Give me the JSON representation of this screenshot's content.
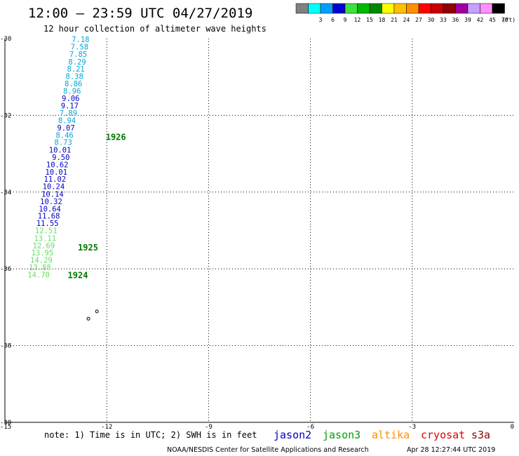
{
  "header": {
    "title": "12:00 — 23:59 UTC 04/27/2019",
    "subtitle": "12 hour collection of altimeter wave heights"
  },
  "colorbar": {
    "unit": "(ft)",
    "steps": [
      {
        "color": "#808080",
        "label": ""
      },
      {
        "color": "#00ffff",
        "label": "3"
      },
      {
        "color": "#00a0ff",
        "label": "6"
      },
      {
        "color": "#0000d0",
        "label": "9"
      },
      {
        "color": "#40e040",
        "label": "12"
      },
      {
        "color": "#00b800",
        "label": "15"
      },
      {
        "color": "#008800",
        "label": "18"
      },
      {
        "color": "#ffff00",
        "label": "21"
      },
      {
        "color": "#ffc000",
        "label": "24"
      },
      {
        "color": "#ff9000",
        "label": "27"
      },
      {
        "color": "#ff0000",
        "label": "30"
      },
      {
        "color": "#c80000",
        "label": "33"
      },
      {
        "color": "#900000",
        "label": "36"
      },
      {
        "color": "#a000a0",
        "label": "39"
      },
      {
        "color": "#c8a0ff",
        "label": "42"
      },
      {
        "color": "#ff90ff",
        "label": "45"
      },
      {
        "color": "#000000",
        "label": "70"
      }
    ]
  },
  "axes": {
    "lon_ticks": [
      {
        "value": -15,
        "label": "-15"
      },
      {
        "value": -12,
        "label": "-12"
      },
      {
        "value": -9,
        "label": "-9"
      },
      {
        "value": -6,
        "label": "-6"
      },
      {
        "value": -3,
        "label": "-3"
      },
      {
        "value": 0,
        "label": "0"
      }
    ],
    "lat_ticks": [
      {
        "value": -30,
        "label": "-30"
      },
      {
        "value": -32,
        "label": "-32"
      },
      {
        "value": -34,
        "label": "-34"
      },
      {
        "value": -36,
        "label": "-36"
      },
      {
        "value": -38,
        "label": "-38"
      },
      {
        "value": -40,
        "label": "-40"
      }
    ]
  },
  "track": {
    "colors": {
      "jason2": "#0000c8",
      "light_blue": "#00a8d8",
      "jason3_light": "#66dd66",
      "time": "#007800"
    },
    "labels": [
      {
        "text": "7.18",
        "lon": -12.51,
        "lat": -30.02,
        "color": "#00a8d8"
      },
      {
        "text": "7.58",
        "lon": -12.54,
        "lat": -30.21,
        "color": "#00a8d8"
      },
      {
        "text": "7.85",
        "lon": -12.58,
        "lat": -30.4,
        "color": "#00a8d8"
      },
      {
        "text": "8.29",
        "lon": -12.61,
        "lat": -30.6,
        "color": "#00a8d8"
      },
      {
        "text": "8.21",
        "lon": -12.65,
        "lat": -30.79,
        "color": "#00a8d8"
      },
      {
        "text": "8.38",
        "lon": -12.69,
        "lat": -30.98,
        "color": "#00a8d8"
      },
      {
        "text": "8.86",
        "lon": -12.72,
        "lat": -31.17,
        "color": "#00a8d8"
      },
      {
        "text": "8.96",
        "lon": -12.76,
        "lat": -31.36,
        "color": "#00a8d8"
      },
      {
        "text": "9.06",
        "lon": -12.8,
        "lat": -31.55,
        "color": "#0000c8"
      },
      {
        "text": "9.17",
        "lon": -12.83,
        "lat": -31.75,
        "color": "#0000c8"
      },
      {
        "text": "7.89",
        "lon": -12.87,
        "lat": -31.94,
        "color": "#00a8d8"
      },
      {
        "text": "8.94",
        "lon": -12.91,
        "lat": -32.13,
        "color": "#00a8d8"
      },
      {
        "text": "9.07",
        "lon": -12.94,
        "lat": -32.32,
        "color": "#0000c8"
      },
      {
        "text": "8.46",
        "lon": -12.98,
        "lat": -32.51,
        "color": "#00a8d8"
      },
      {
        "text": "8.73",
        "lon": -13.02,
        "lat": -32.7,
        "color": "#00a8d8"
      },
      {
        "text": "10.01",
        "lon": -13.05,
        "lat": -32.9,
        "color": "#0000c8"
      },
      {
        "text": "9.50",
        "lon": -13.09,
        "lat": -33.09,
        "color": "#0000c8"
      },
      {
        "text": "10.62",
        "lon": -13.13,
        "lat": -33.28,
        "color": "#0000c8"
      },
      {
        "text": "10.01",
        "lon": -13.16,
        "lat": -33.47,
        "color": "#0000c8"
      },
      {
        "text": "11.02",
        "lon": -13.2,
        "lat": -33.66,
        "color": "#0000c8"
      },
      {
        "text": "10.24",
        "lon": -13.24,
        "lat": -33.85,
        "color": "#0000c8"
      },
      {
        "text": "10.14",
        "lon": -13.27,
        "lat": -34.05,
        "color": "#0000c8"
      },
      {
        "text": "10.32",
        "lon": -13.31,
        "lat": -34.24,
        "color": "#0000c8"
      },
      {
        "text": "10.64",
        "lon": -13.35,
        "lat": -34.43,
        "color": "#0000c8"
      },
      {
        "text": "11.68",
        "lon": -13.38,
        "lat": -34.62,
        "color": "#0000c8"
      },
      {
        "text": "11.55",
        "lon": -13.42,
        "lat": -34.81,
        "color": "#0000c8"
      },
      {
        "text": "12.51",
        "lon": -13.46,
        "lat": -35.0,
        "color": "#66dd66"
      },
      {
        "text": "13.11",
        "lon": -13.49,
        "lat": -35.2,
        "color": "#66dd66"
      },
      {
        "text": "12.69",
        "lon": -13.53,
        "lat": -35.39,
        "color": "#66dd66"
      },
      {
        "text": "13.95",
        "lon": -13.57,
        "lat": -35.58,
        "color": "#66dd66"
      },
      {
        "text": "14.29",
        "lon": -13.6,
        "lat": -35.77,
        "color": "#66dd66"
      },
      {
        "text": "13.88",
        "lon": -13.64,
        "lat": -35.96,
        "color": "#66dd66"
      },
      {
        "text": "14.70",
        "lon": -13.68,
        "lat": -36.15,
        "color": "#66dd66"
      }
    ],
    "times": [
      {
        "text": "1926",
        "lon": -12.03,
        "lat": -32.57
      },
      {
        "text": "1925",
        "lon": -12.85,
        "lat": -35.45
      },
      {
        "text": "1924",
        "lon": -13.15,
        "lat": -36.17
      }
    ]
  },
  "islands": [
    {
      "name": "",
      "lon": -12.29,
      "lat": -37.11
    },
    {
      "name": "",
      "lon": -12.54,
      "lat": -37.3
    }
  ],
  "footer": {
    "note": "note: 1) Time is in UTC; 2) SWH is in feet",
    "satellites": [
      {
        "name": "jason2",
        "color": "#0000c8"
      },
      {
        "name": "jason3",
        "color": "#00a000"
      },
      {
        "name": "altika",
        "color": "#ff9000"
      },
      {
        "name": "cryosat",
        "color": "#e00000"
      },
      {
        "name": "s3a",
        "color": "#900000"
      }
    ],
    "credit": "NOAA/NESDIS Center for Satellite Applications and Research",
    "timestamp": "Apr 28 12:27:44 UTC 2019"
  }
}
